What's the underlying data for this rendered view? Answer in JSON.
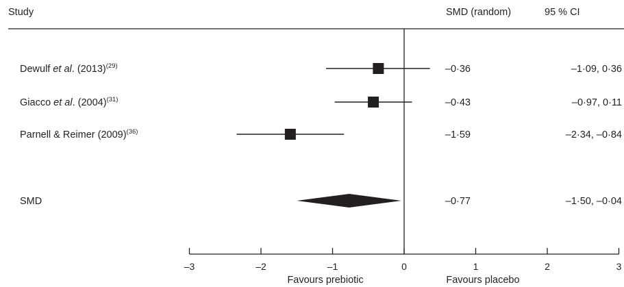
{
  "header": {
    "study": "Study",
    "smd": "SMD (random)",
    "ci": "95 % CI"
  },
  "chart_data": {
    "type": "forest",
    "studies": [
      {
        "name": "Dewulf ",
        "etal": "et al",
        "rest": ". (2013)",
        "ref": "(29)",
        "smd": -0.36,
        "lo": -1.09,
        "hi": 0.36,
        "smd_text": "–0·36",
        "ci_text": "–1·09, 0·36"
      },
      {
        "name": "Giacco ",
        "etal": "et al",
        "rest": ". (2004)",
        "ref": "(31)",
        "smd": -0.43,
        "lo": -0.97,
        "hi": 0.11,
        "smd_text": "–0·43",
        "ci_text": "–0·97, 0·11"
      },
      {
        "name": "Parnell & Reimer (2009)",
        "etal": "",
        "rest": "",
        "ref": "(36)",
        "smd": -1.59,
        "lo": -2.34,
        "hi": -0.84,
        "smd_text": "–1·59",
        "ci_text": "–2·34, –0·84"
      }
    ],
    "pooled": {
      "label": "SMD",
      "smd": -0.77,
      "lo": -1.5,
      "hi": -0.04,
      "smd_text": "–0·77",
      "ci_text": "–1·50, –0·04"
    },
    "xlim": [
      -3,
      3
    ],
    "ticks": [
      {
        "value": -3,
        "label": "–3"
      },
      {
        "value": -2,
        "label": "–2"
      },
      {
        "value": -1,
        "label": "–1"
      },
      {
        "value": 0,
        "label": "0"
      },
      {
        "value": 1,
        "label": "1"
      },
      {
        "value": 2,
        "label": "2"
      },
      {
        "value": 3,
        "label": "3"
      }
    ],
    "favours_left": "Favours prebiotic",
    "favours_right": "Favours placebo"
  }
}
